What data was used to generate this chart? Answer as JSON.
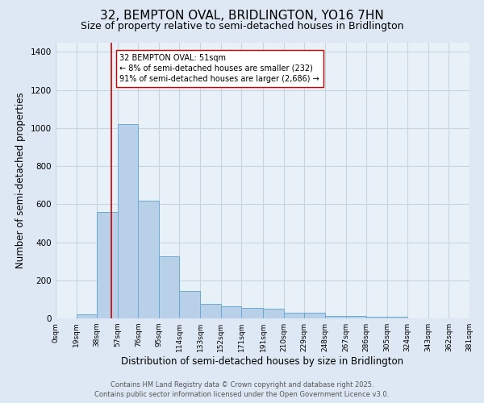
{
  "title": "32, BEMPTON OVAL, BRIDLINGTON, YO16 7HN",
  "subtitle": "Size of property relative to semi-detached houses in Bridlington",
  "xlabel": "Distribution of semi-detached houses by size in Bridlington",
  "ylabel": "Number of semi-detached properties",
  "bin_labels": [
    "0sqm",
    "19sqm",
    "38sqm",
    "57sqm",
    "76sqm",
    "95sqm",
    "114sqm",
    "133sqm",
    "152sqm",
    "171sqm",
    "191sqm",
    "210sqm",
    "229sqm",
    "248sqm",
    "267sqm",
    "286sqm",
    "305sqm",
    "324sqm",
    "343sqm",
    "362sqm",
    "381sqm"
  ],
  "bin_edges": [
    0,
    19,
    38,
    57,
    76,
    95,
    114,
    133,
    152,
    171,
    191,
    210,
    229,
    248,
    267,
    286,
    305,
    324,
    343,
    362,
    381
  ],
  "bar_values": [
    0,
    20,
    560,
    1020,
    620,
    325,
    145,
    75,
    65,
    55,
    50,
    28,
    28,
    12,
    12,
    8,
    8,
    0,
    0,
    0
  ],
  "bar_color": "#b8d0e8",
  "bar_edge_color": "#6aaad4",
  "bar_edge_width": 0.7,
  "red_line_x": 51,
  "red_line_color": "#cc0000",
  "annotation_text": "32 BEMPTON OVAL: 51sqm\n← 8% of semi-detached houses are smaller (232)\n91% of semi-detached houses are larger (2,686) →",
  "ylim": [
    0,
    1450
  ],
  "yticks": [
    0,
    200,
    400,
    600,
    800,
    1000,
    1200,
    1400
  ],
  "bg_color": "#dde8f4",
  "plot_bg_color": "#e8f0f8",
  "grid_color": "#c8d4e0",
  "footer_line1": "Contains HM Land Registry data © Crown copyright and database right 2025.",
  "footer_line2": "Contains public sector information licensed under the Open Government Licence v3.0.",
  "title_fontsize": 11,
  "subtitle_fontsize": 9,
  "axis_label_fontsize": 8.5,
  "tick_fontsize": 6.5,
  "annotation_fontsize": 7,
  "footer_fontsize": 6
}
